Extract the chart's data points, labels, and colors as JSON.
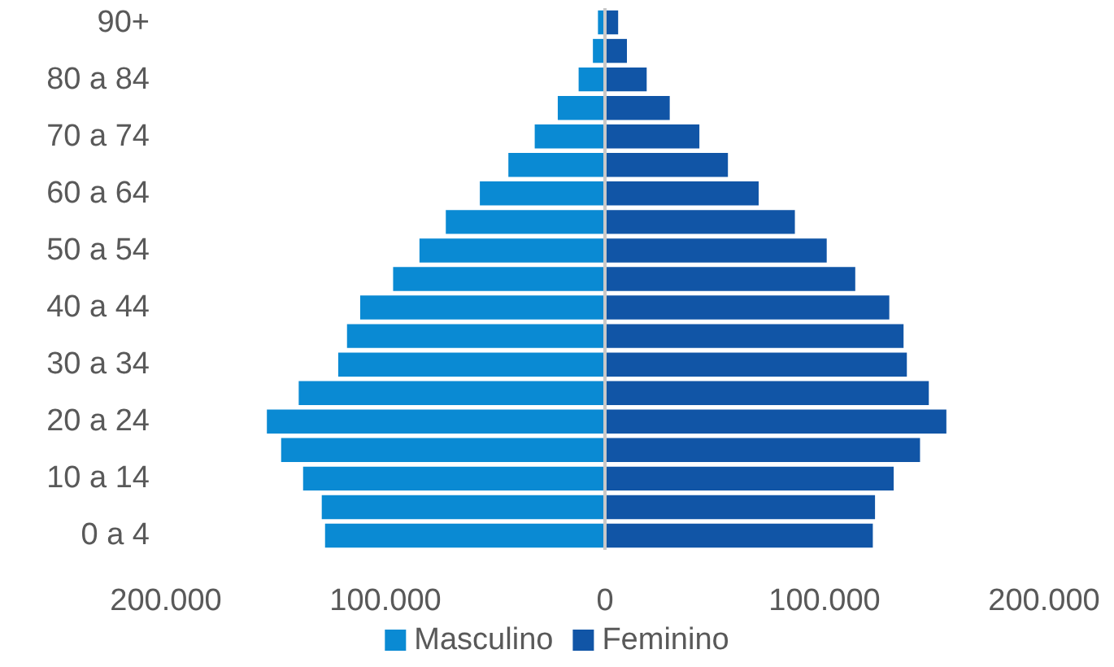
{
  "chart_data": {
    "type": "bar",
    "orientation": "horizontal",
    "stacked": true,
    "categories": [
      "90+",
      null,
      "80 a 84",
      null,
      "70 a 74",
      null,
      "60 a 64",
      null,
      "50 a 54",
      null,
      "40 a 44",
      null,
      "30 a 34",
      null,
      "20 a 24",
      null,
      "10 a 14",
      null,
      "0 a 4"
    ],
    "series": [
      {
        "name": "Masculino",
        "color": "#0a8ad3",
        "values": [
          -3200,
          -5500,
          -12000,
          -21500,
          -32000,
          -44000,
          -57000,
          -72500,
          -84500,
          -96500,
          -111500,
          -117500,
          -121500,
          -139500,
          -154000,
          -147500,
          -137500,
          -129000,
          -127500
        ]
      },
      {
        "name": "Feminino",
        "color": "#1155a6",
        "values": [
          6000,
          10000,
          19000,
          29500,
          43000,
          56000,
          70000,
          86500,
          101000,
          114000,
          129500,
          136000,
          137500,
          147500,
          155500,
          143500,
          131500,
          123000,
          122000
        ]
      }
    ],
    "xlim": [
      -200000,
      200000
    ],
    "xticks": [
      {
        "value": -200000,
        "label": "200.000"
      },
      {
        "value": -100000,
        "label": "100.000"
      },
      0,
      {
        "value": 100000,
        "label": "100.000"
      },
      {
        "value": 200000,
        "label": "200.000"
      }
    ],
    "ref_lines": [
      {
        "axis": "x",
        "value": 0,
        "color": "#c8c8c8"
      }
    ],
    "grid": false,
    "legend": "bottom"
  }
}
